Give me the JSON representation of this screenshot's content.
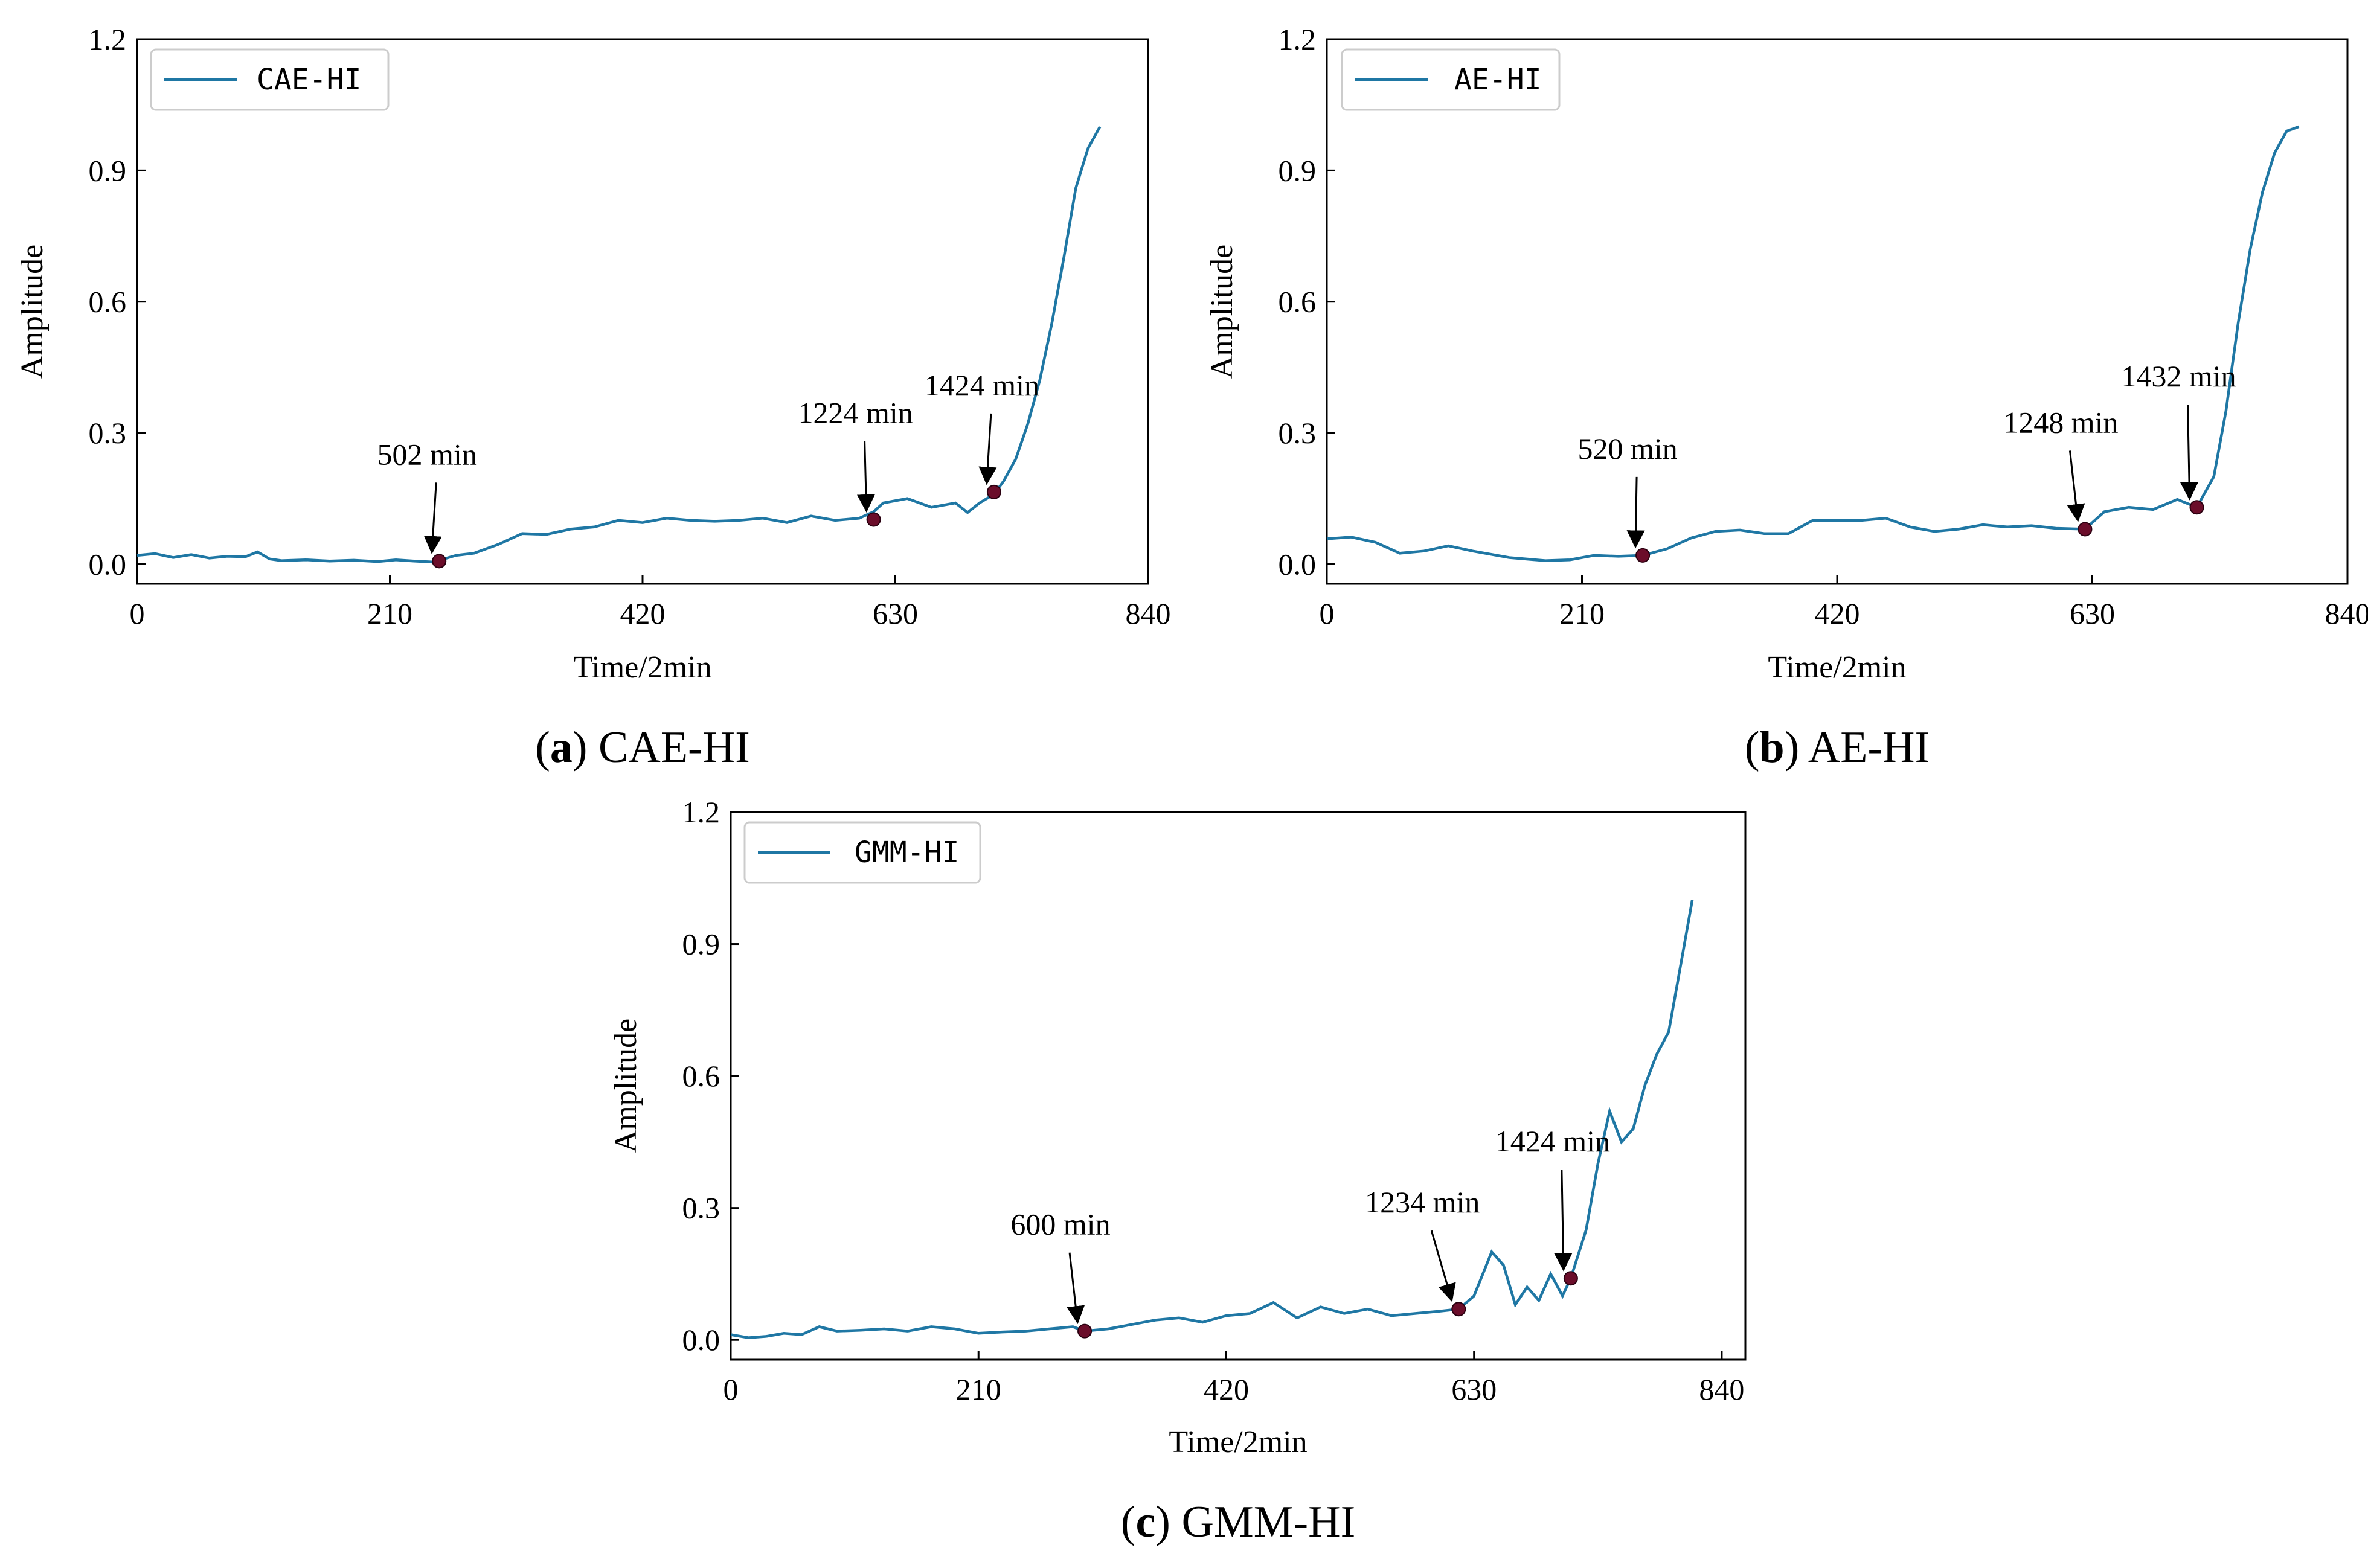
{
  "chart_data": [
    {
      "type": "line",
      "panel": "a",
      "caption_letter": "a",
      "caption_text": "CAE-HI",
      "legend": "CAE-HI",
      "line_color": "#1f77a4",
      "marker_color": "#6b0d2a",
      "xlabel": "Time/2min",
      "ylabel": "Amplitude",
      "xlim": [
        0,
        840
      ],
      "ylim": [
        -0.045,
        1.2
      ],
      "xticks": [
        0,
        210,
        420,
        630,
        840
      ],
      "xtick_labels": [
        "0",
        "210",
        "420",
        "630",
        "840"
      ],
      "yticks": [
        0.0,
        0.3,
        0.6,
        0.9,
        1.2
      ],
      "ytick_labels": [
        "0.0",
        "0.3",
        "0.6",
        "0.9",
        "1.2"
      ],
      "x": [
        0,
        15,
        30,
        45,
        60,
        75,
        90,
        100,
        110,
        120,
        140,
        160,
        180,
        200,
        215,
        230,
        245,
        255,
        265,
        280,
        300,
        320,
        340,
        360,
        380,
        400,
        420,
        440,
        460,
        480,
        500,
        520,
        540,
        560,
        580,
        600,
        612,
        620,
        640,
        660,
        680,
        690,
        700,
        712,
        720,
        730,
        740,
        750,
        760,
        770,
        780,
        790,
        800
      ],
      "y": [
        0.02,
        0.024,
        0.015,
        0.022,
        0.014,
        0.018,
        0.017,
        0.028,
        0.012,
        0.008,
        0.01,
        0.007,
        0.009,
        0.006,
        0.01,
        0.007,
        0.005,
        0.012,
        0.02,
        0.025,
        0.045,
        0.07,
        0.068,
        0.08,
        0.085,
        0.1,
        0.095,
        0.105,
        0.1,
        0.098,
        0.1,
        0.105,
        0.095,
        0.11,
        0.1,
        0.105,
        0.12,
        0.14,
        0.15,
        0.13,
        0.14,
        0.118,
        0.14,
        0.16,
        0.19,
        0.24,
        0.32,
        0.42,
        0.55,
        0.7,
        0.86,
        0.95,
        1.0
      ],
      "annotations": [
        {
          "label": "502 min",
          "x": 251,
          "y": 0.007
        },
        {
          "label": "1224 min",
          "x": 612,
          "y": 0.102
        },
        {
          "label": "1424 min",
          "x": 712,
          "y": 0.165
        }
      ]
    },
    {
      "type": "line",
      "panel": "b",
      "caption_letter": "b",
      "caption_text": "AE-HI",
      "legend": "AE-HI",
      "line_color": "#1f77a4",
      "marker_color": "#6b0d2a",
      "xlabel": "Time/2min",
      "ylabel": "Amplitude",
      "xlim": [
        0,
        840
      ],
      "ylim": [
        -0.045,
        1.2
      ],
      "xticks": [
        0,
        210,
        420,
        630,
        840
      ],
      "xtick_labels": [
        "0",
        "210",
        "420",
        "630",
        "840"
      ],
      "yticks": [
        0.0,
        0.3,
        0.6,
        0.9,
        1.2
      ],
      "ytick_labels": [
        "0.0",
        "0.3",
        "0.6",
        "0.9",
        "1.2"
      ],
      "x": [
        0,
        20,
        40,
        60,
        80,
        100,
        120,
        150,
        180,
        200,
        220,
        240,
        260,
        280,
        300,
        320,
        340,
        360,
        380,
        400,
        420,
        440,
        460,
        480,
        500,
        520,
        540,
        560,
        580,
        600,
        624,
        640,
        660,
        680,
        700,
        716,
        730,
        740,
        750,
        760,
        770,
        780,
        790,
        800
      ],
      "y": [
        0.058,
        0.062,
        0.05,
        0.025,
        0.03,
        0.042,
        0.03,
        0.015,
        0.008,
        0.01,
        0.02,
        0.018,
        0.02,
        0.035,
        0.06,
        0.075,
        0.078,
        0.07,
        0.07,
        0.1,
        0.1,
        0.1,
        0.105,
        0.085,
        0.075,
        0.08,
        0.09,
        0.085,
        0.088,
        0.082,
        0.08,
        0.12,
        0.13,
        0.125,
        0.148,
        0.13,
        0.2,
        0.35,
        0.55,
        0.72,
        0.85,
        0.94,
        0.99,
        1.0
      ],
      "annotations": [
        {
          "label": "520 min",
          "x": 260,
          "y": 0.02
        },
        {
          "label": "1248 min",
          "x": 624,
          "y": 0.08
        },
        {
          "label": "1432 min",
          "x": 716,
          "y": 0.13
        }
      ]
    },
    {
      "type": "line",
      "panel": "c",
      "caption_letter": "c",
      "caption_text": "GMM-HI",
      "legend": "GMM-HI",
      "line_color": "#1f77a4",
      "marker_color": "#6b0d2a",
      "xlabel": "Time/2min",
      "ylabel": "Amplitude",
      "xlim": [
        0,
        860
      ],
      "ylim": [
        -0.045,
        1.2
      ],
      "xticks": [
        0,
        210,
        420,
        630,
        840
      ],
      "xtick_labels": [
        "0",
        "210",
        "420",
        "630",
        "840"
      ],
      "yticks": [
        0.0,
        0.3,
        0.6,
        0.9,
        1.2
      ],
      "ytick_labels": [
        "0.0",
        "0.3",
        "0.6",
        "0.9",
        "1.2"
      ],
      "x": [
        0,
        15,
        30,
        45,
        60,
        75,
        90,
        110,
        130,
        150,
        170,
        190,
        210,
        230,
        250,
        270,
        290,
        300,
        320,
        340,
        360,
        380,
        400,
        420,
        440,
        460,
        480,
        500,
        520,
        540,
        560,
        580,
        600,
        617,
        630,
        645,
        655,
        665,
        675,
        685,
        695,
        705,
        712,
        725,
        735,
        745,
        755,
        765,
        775,
        785,
        795,
        805,
        815
      ],
      "y": [
        0.012,
        0.005,
        0.008,
        0.015,
        0.012,
        0.03,
        0.02,
        0.022,
        0.025,
        0.02,
        0.03,
        0.025,
        0.015,
        0.018,
        0.02,
        0.025,
        0.03,
        0.02,
        0.025,
        0.035,
        0.045,
        0.05,
        0.04,
        0.055,
        0.06,
        0.085,
        0.05,
        0.075,
        0.06,
        0.07,
        0.055,
        0.06,
        0.065,
        0.07,
        0.1,
        0.2,
        0.17,
        0.08,
        0.12,
        0.09,
        0.15,
        0.1,
        0.14,
        0.25,
        0.4,
        0.52,
        0.45,
        0.48,
        0.58,
        0.65,
        0.7,
        0.85,
        1.0
      ],
      "annotations": [
        {
          "label": "600 min",
          "x": 300,
          "y": 0.02
        },
        {
          "label": "1234 min",
          "x": 617,
          "y": 0.07
        },
        {
          "label": "1424 min",
          "x": 712,
          "y": 0.14
        }
      ]
    }
  ]
}
